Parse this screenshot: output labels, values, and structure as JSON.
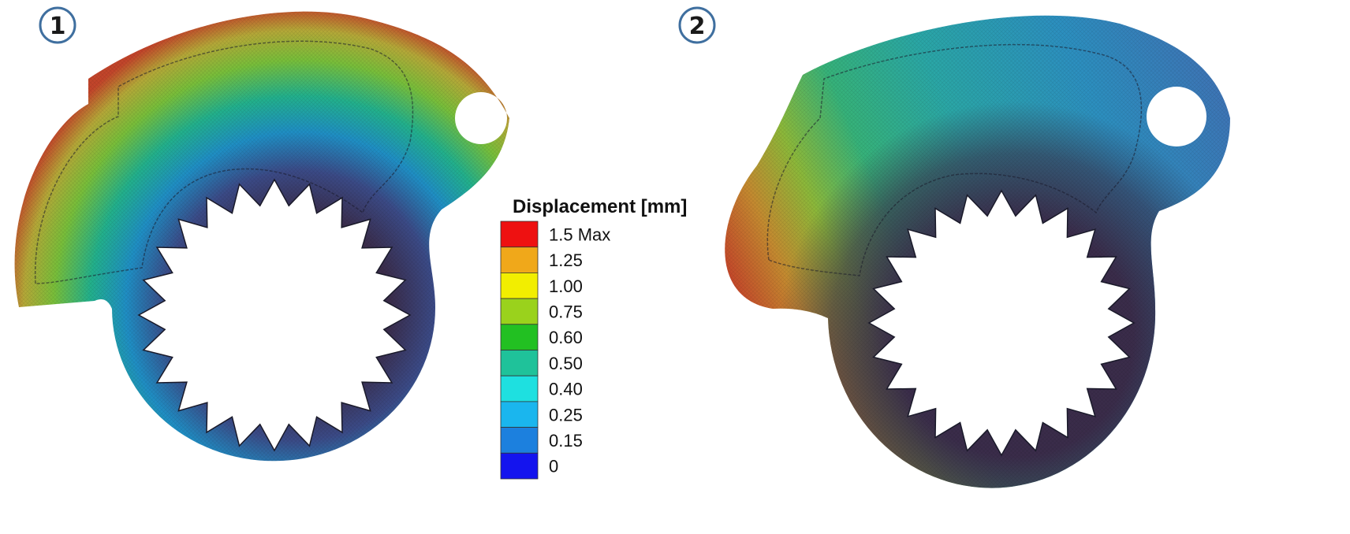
{
  "panels": [
    {
      "badge": "1"
    },
    {
      "badge": "2"
    }
  ],
  "legend": {
    "title": "Displacement [mm]",
    "entries": [
      {
        "label": "1.5 Max",
        "color": "#ee1111"
      },
      {
        "label": "1.25",
        "color": "#f0a81a"
      },
      {
        "label": "1.00",
        "color": "#f2ee00"
      },
      {
        "label": "0.75",
        "color": "#9ad21c"
      },
      {
        "label": "0.60",
        "color": "#22c022"
      },
      {
        "label": "0.50",
        "color": "#1fc29a"
      },
      {
        "label": "0.40",
        "color": "#1ee0e0"
      },
      {
        "label": "0.25",
        "color": "#1ab6ee"
      },
      {
        "label": "0.15",
        "color": "#1c80de"
      },
      {
        "label": "0",
        "color": "#1414ee"
      }
    ]
  },
  "colors": {
    "low": "#3a2c4a",
    "badge_ring": "#3f6f9f"
  }
}
